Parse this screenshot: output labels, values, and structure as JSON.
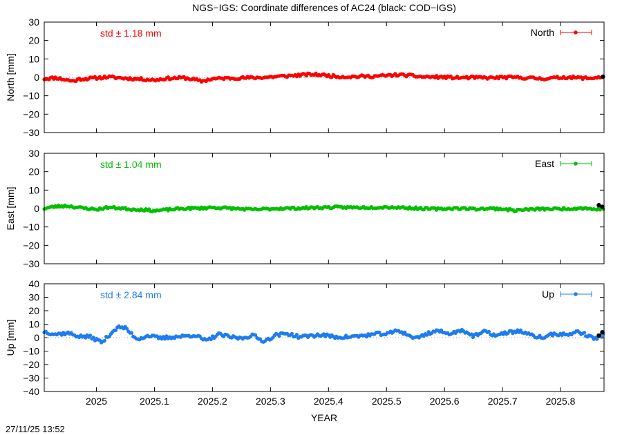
{
  "chart_data": {
    "type": "scatter",
    "title": "NGS−IGS: Coordinate differences of AC24 (black: COD−IGS)",
    "xlabel": "YEAR",
    "xlim": [
      2024.91,
      2025.875
    ],
    "x_ticks": [
      "2025",
      "2025.1",
      "2025.2",
      "2025.3",
      "2025.4",
      "2025.5",
      "2025.6",
      "2025.7",
      "2025.8"
    ],
    "panels": [
      {
        "name": "North",
        "ylabel": "North [mm]",
        "ylim": [
          -30,
          30
        ],
        "y_ticks": [
          "30",
          "20",
          "10",
          "0",
          "−10",
          "−20",
          "−30"
        ],
        "std_label": "std ± 1.18 mm",
        "legend": "North",
        "color": "#ff0000",
        "profile": [
          [
            2024.91,
            -0.8
          ],
          [
            2024.93,
            -0.2
          ],
          [
            2024.95,
            -1.5
          ],
          [
            2024.96,
            -2.0
          ],
          [
            2024.97,
            -1.0
          ],
          [
            2025.0,
            -0.3
          ],
          [
            2025.02,
            0.2
          ],
          [
            2025.05,
            -0.5
          ],
          [
            2025.07,
            -0.8
          ],
          [
            2025.09,
            -1.2
          ],
          [
            2025.1,
            -1.5
          ],
          [
            2025.12,
            -0.6
          ],
          [
            2025.15,
            -0.2
          ],
          [
            2025.17,
            -1.2
          ],
          [
            2025.18,
            -2.2
          ],
          [
            2025.2,
            -0.8
          ],
          [
            2025.22,
            -0.5
          ],
          [
            2025.25,
            -0.3
          ],
          [
            2025.27,
            -0.2
          ],
          [
            2025.29,
            0.0
          ],
          [
            2025.31,
            0.4
          ],
          [
            2025.33,
            0.8
          ],
          [
            2025.35,
            1.2
          ],
          [
            2025.37,
            1.6
          ],
          [
            2025.39,
            1.3
          ],
          [
            2025.41,
            0.6
          ],
          [
            2025.43,
            0.3
          ],
          [
            2025.46,
            0.5
          ],
          [
            2025.48,
            0.6
          ],
          [
            2025.5,
            0.9
          ],
          [
            2025.52,
            1.4
          ],
          [
            2025.54,
            1.0
          ],
          [
            2025.56,
            0.3
          ],
          [
            2025.58,
            0.2
          ],
          [
            2025.6,
            0.1
          ],
          [
            2025.62,
            -0.2
          ],
          [
            2025.65,
            -0.1
          ],
          [
            2025.68,
            -0.3
          ],
          [
            2025.7,
            0.0
          ],
          [
            2025.73,
            -0.1
          ],
          [
            2025.75,
            -0.4
          ],
          [
            2025.77,
            -0.7
          ],
          [
            2025.79,
            -0.3
          ],
          [
            2025.81,
            0.1
          ],
          [
            2025.83,
            -0.2
          ],
          [
            2025.85,
            -0.5
          ],
          [
            2025.87,
            0.2
          ],
          [
            2025.875,
            0.0
          ]
        ],
        "noise": 0.7,
        "seed": 11,
        "cod_points": [
          [
            2025.873,
            0.3
          ]
        ]
      },
      {
        "name": "East",
        "ylabel": "East [mm]",
        "ylim": [
          -30,
          30
        ],
        "y_ticks": [
          "30",
          "20",
          "10",
          "0",
          "−10",
          "−20",
          "−30"
        ],
        "std_label": "std ± 1.04 mm",
        "legend": "East",
        "color": "#00c000",
        "profile": [
          [
            2024.91,
            0.0
          ],
          [
            2024.93,
            1.2
          ],
          [
            2024.95,
            1.5
          ],
          [
            2024.97,
            0.5
          ],
          [
            2025.0,
            -0.5
          ],
          [
            2025.02,
            0.6
          ],
          [
            2025.04,
            0.3
          ],
          [
            2025.06,
            -0.4
          ],
          [
            2025.08,
            -0.6
          ],
          [
            2025.1,
            -1.2
          ],
          [
            2025.12,
            -0.7
          ],
          [
            2025.15,
            0.0
          ],
          [
            2025.18,
            0.2
          ],
          [
            2025.2,
            0.6
          ],
          [
            2025.22,
            0.3
          ],
          [
            2025.25,
            -0.2
          ],
          [
            2025.27,
            -0.6
          ],
          [
            2025.29,
            -0.3
          ],
          [
            2025.31,
            0.0
          ],
          [
            2025.35,
            0.2
          ],
          [
            2025.38,
            0.5
          ],
          [
            2025.41,
            0.7
          ],
          [
            2025.44,
            0.6
          ],
          [
            2025.47,
            0.6
          ],
          [
            2025.5,
            0.8
          ],
          [
            2025.53,
            0.5
          ],
          [
            2025.56,
            0.0
          ],
          [
            2025.59,
            -0.3
          ],
          [
            2025.62,
            0.2
          ],
          [
            2025.65,
            -0.2
          ],
          [
            2025.68,
            0.0
          ],
          [
            2025.7,
            -0.2
          ],
          [
            2025.72,
            -1.0
          ],
          [
            2025.74,
            -0.6
          ],
          [
            2025.76,
            -0.3
          ],
          [
            2025.79,
            -0.2
          ],
          [
            2025.82,
            0.0
          ],
          [
            2025.84,
            0.3
          ],
          [
            2025.86,
            -0.5
          ],
          [
            2025.875,
            0.2
          ]
        ],
        "noise": 0.6,
        "seed": 23,
        "cod_points": [
          [
            2025.866,
            1.8
          ],
          [
            2025.872,
            0.9
          ]
        ]
      },
      {
        "name": "Up",
        "ylabel": "Up [mm]",
        "ylim": [
          -40,
          40
        ],
        "y_ticks": [
          "40",
          "30",
          "20",
          "10",
          "0",
          "−10",
          "−20",
          "−30",
          "−40"
        ],
        "std_label": "std ± 2.84 mm",
        "legend": "Up",
        "color": "#1e7cf0",
        "profile": [
          [
            2024.91,
            4.5
          ],
          [
            2024.93,
            2.5
          ],
          [
            2024.95,
            3.5
          ],
          [
            2024.97,
            1.0
          ],
          [
            2024.99,
            0.5
          ],
          [
            2025.0,
            -1.5
          ],
          [
            2025.01,
            -3.5
          ],
          [
            2025.02,
            1.0
          ],
          [
            2025.03,
            5.5
          ],
          [
            2025.04,
            8.0
          ],
          [
            2025.05,
            7.0
          ],
          [
            2025.06,
            3.0
          ],
          [
            2025.07,
            -1.0
          ],
          [
            2025.09,
            1.5
          ],
          [
            2025.11,
            -0.5
          ],
          [
            2025.13,
            0.5
          ],
          [
            2025.15,
            1.0
          ],
          [
            2025.17,
            2.0
          ],
          [
            2025.18,
            -0.5
          ],
          [
            2025.19,
            -2.5
          ],
          [
            2025.21,
            2.5
          ],
          [
            2025.23,
            0.5
          ],
          [
            2025.25,
            -0.5
          ],
          [
            2025.27,
            2.0
          ],
          [
            2025.28,
            -1.0
          ],
          [
            2025.29,
            -2.5
          ],
          [
            2025.31,
            2.0
          ],
          [
            2025.33,
            3.0
          ],
          [
            2025.35,
            0.5
          ],
          [
            2025.37,
            1.5
          ],
          [
            2025.39,
            2.0
          ],
          [
            2025.41,
            0.5
          ],
          [
            2025.43,
            0.5
          ],
          [
            2025.45,
            1.0
          ],
          [
            2025.47,
            2.0
          ],
          [
            2025.49,
            3.0
          ],
          [
            2025.5,
            2.5
          ],
          [
            2025.52,
            5.5
          ],
          [
            2025.54,
            1.5
          ],
          [
            2025.55,
            -0.5
          ],
          [
            2025.57,
            3.0
          ],
          [
            2025.59,
            5.5
          ],
          [
            2025.6,
            3.0
          ],
          [
            2025.62,
            4.0
          ],
          [
            2025.63,
            6.0
          ],
          [
            2025.65,
            1.0
          ],
          [
            2025.67,
            4.5
          ],
          [
            2025.69,
            1.5
          ],
          [
            2025.71,
            4.0
          ],
          [
            2025.73,
            5.0
          ],
          [
            2025.75,
            1.5
          ],
          [
            2025.77,
            0.0
          ],
          [
            2025.79,
            3.0
          ],
          [
            2025.81,
            2.0
          ],
          [
            2025.83,
            4.5
          ],
          [
            2025.85,
            1.0
          ],
          [
            2025.86,
            -1.0
          ],
          [
            2025.875,
            2.5
          ]
        ],
        "noise": 1.2,
        "seed": 37,
        "cod_points": [
          [
            2025.866,
            1.5
          ],
          [
            2025.872,
            4.0
          ]
        ]
      }
    ]
  },
  "footer": {
    "timestamp": "27/11/25 13:52"
  }
}
